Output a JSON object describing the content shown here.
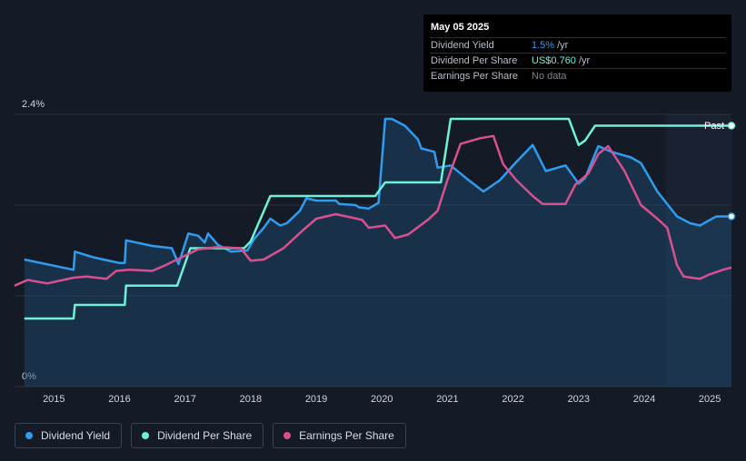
{
  "tooltip": {
    "date": "May 05 2025",
    "rows": [
      {
        "label": "Dividend Yield",
        "value": "1.5%",
        "unit": "/yr",
        "color": "#2f9cf0"
      },
      {
        "label": "Dividend Per Share",
        "value": "US$0.760",
        "unit": "/yr",
        "color": "#6ff0d8"
      },
      {
        "label": "Earnings Per Share",
        "value": "No data",
        "unit": "",
        "color": "#7c828c"
      }
    ]
  },
  "legend": [
    {
      "label": "Dividend Yield",
      "color": "#2f9cf0"
    },
    {
      "label": "Dividend Per Share",
      "color": "#6ff0d8"
    },
    {
      "label": "Earnings Per Share",
      "color": "#d9508f"
    }
  ],
  "chart_data": {
    "type": "line",
    "ylim": [
      0,
      2.4
    ],
    "y_tick_labels": [
      "2.4%",
      "0%"
    ],
    "xlim": [
      2014.4,
      2025.33
    ],
    "x_ticks": [
      2015,
      2016,
      2017,
      2018,
      2019,
      2020,
      2021,
      2022,
      2023,
      2024,
      2025
    ],
    "x_tick_labels": [
      "2015",
      "2016",
      "2017",
      "2018",
      "2019",
      "2020",
      "2021",
      "2022",
      "2023",
      "2024",
      "2025"
    ],
    "past_label": "Past",
    "past_region_start": 2024.33,
    "colors": {
      "background": "#151b26",
      "grid": "#2a3240",
      "axis_text": "#cfd5de",
      "area_fill": "#1f4d74",
      "past_shade": "#1a2433"
    },
    "grid": true,
    "legend_position": "bottom-left",
    "series": [
      {
        "name": "Dividend Yield",
        "color": "#2f9cf0",
        "area": true,
        "points": [
          [
            2014.55,
            1.12
          ],
          [
            2015.3,
            1.03
          ],
          [
            2015.32,
            1.19
          ],
          [
            2015.6,
            1.14
          ],
          [
            2016.0,
            1.09
          ],
          [
            2016.08,
            1.09
          ],
          [
            2016.1,
            1.29
          ],
          [
            2016.5,
            1.24
          ],
          [
            2016.8,
            1.22
          ],
          [
            2016.9,
            1.08
          ],
          [
            2017.05,
            1.35
          ],
          [
            2017.2,
            1.33
          ],
          [
            2017.3,
            1.27
          ],
          [
            2017.35,
            1.35
          ],
          [
            2017.5,
            1.25
          ],
          [
            2017.7,
            1.19
          ],
          [
            2017.95,
            1.2
          ],
          [
            2018.05,
            1.3
          ],
          [
            2018.2,
            1.4
          ],
          [
            2018.3,
            1.48
          ],
          [
            2018.45,
            1.42
          ],
          [
            2018.55,
            1.44
          ],
          [
            2018.75,
            1.55
          ],
          [
            2018.85,
            1.66
          ],
          [
            2019.0,
            1.64
          ],
          [
            2019.3,
            1.64
          ],
          [
            2019.35,
            1.61
          ],
          [
            2019.6,
            1.6
          ],
          [
            2019.65,
            1.58
          ],
          [
            2019.8,
            1.57
          ],
          [
            2019.95,
            1.62
          ],
          [
            2020.05,
            2.36
          ],
          [
            2020.15,
            2.36
          ],
          [
            2020.35,
            2.3
          ],
          [
            2020.55,
            2.18
          ],
          [
            2020.6,
            2.1
          ],
          [
            2020.8,
            2.07
          ],
          [
            2020.85,
            1.93
          ],
          [
            2021.05,
            1.95
          ],
          [
            2021.3,
            1.83
          ],
          [
            2021.55,
            1.72
          ],
          [
            2021.8,
            1.82
          ],
          [
            2022.05,
            1.98
          ],
          [
            2022.3,
            2.13
          ],
          [
            2022.5,
            1.9
          ],
          [
            2022.8,
            1.95
          ],
          [
            2023.0,
            1.79
          ],
          [
            2023.1,
            1.84
          ],
          [
            2023.3,
            2.12
          ],
          [
            2023.5,
            2.07
          ],
          [
            2023.8,
            2.02
          ],
          [
            2023.95,
            1.97
          ],
          [
            2024.2,
            1.72
          ],
          [
            2024.5,
            1.5
          ],
          [
            2024.7,
            1.44
          ],
          [
            2024.85,
            1.42
          ],
          [
            2025.0,
            1.47
          ],
          [
            2025.1,
            1.5
          ],
          [
            2025.33,
            1.5
          ]
        ]
      },
      {
        "name": "Dividend Per Share",
        "color": "#6ff0d8",
        "points": [
          [
            2014.55,
            0.6
          ],
          [
            2015.3,
            0.6
          ],
          [
            2015.32,
            0.72
          ],
          [
            2016.08,
            0.72
          ],
          [
            2016.1,
            0.89
          ],
          [
            2016.88,
            0.89
          ],
          [
            2017.08,
            1.22
          ],
          [
            2017.9,
            1.22
          ],
          [
            2018.0,
            1.28
          ],
          [
            2018.3,
            1.68
          ],
          [
            2019.9,
            1.68
          ],
          [
            2020.05,
            1.8
          ],
          [
            2020.9,
            1.8
          ],
          [
            2021.05,
            2.36
          ],
          [
            2022.85,
            2.36
          ],
          [
            2023.0,
            2.13
          ],
          [
            2023.1,
            2.17
          ],
          [
            2023.25,
            2.3
          ],
          [
            2025.33,
            2.3
          ]
        ]
      },
      {
        "name": "Earnings Per Share",
        "color": "#d9508f",
        "points": [
          [
            2014.4,
            0.89
          ],
          [
            2014.6,
            0.94
          ],
          [
            2014.9,
            0.91
          ],
          [
            2015.3,
            0.96
          ],
          [
            2015.5,
            0.97
          ],
          [
            2015.8,
            0.95
          ],
          [
            2015.95,
            1.02
          ],
          [
            2016.15,
            1.03
          ],
          [
            2016.5,
            1.02
          ],
          [
            2016.7,
            1.07
          ],
          [
            2016.95,
            1.14
          ],
          [
            2017.2,
            1.21
          ],
          [
            2017.5,
            1.23
          ],
          [
            2017.85,
            1.22
          ],
          [
            2018.0,
            1.11
          ],
          [
            2018.2,
            1.12
          ],
          [
            2018.5,
            1.22
          ],
          [
            2018.8,
            1.38
          ],
          [
            2019.0,
            1.48
          ],
          [
            2019.3,
            1.52
          ],
          [
            2019.7,
            1.47
          ],
          [
            2019.8,
            1.4
          ],
          [
            2020.05,
            1.42
          ],
          [
            2020.2,
            1.31
          ],
          [
            2020.4,
            1.34
          ],
          [
            2020.7,
            1.47
          ],
          [
            2020.85,
            1.55
          ],
          [
            2021.0,
            1.82
          ],
          [
            2021.2,
            2.14
          ],
          [
            2021.5,
            2.19
          ],
          [
            2021.7,
            2.21
          ],
          [
            2021.85,
            1.96
          ],
          [
            2022.05,
            1.82
          ],
          [
            2022.3,
            1.68
          ],
          [
            2022.45,
            1.61
          ],
          [
            2022.8,
            1.61
          ],
          [
            2022.95,
            1.78
          ],
          [
            2023.15,
            1.88
          ],
          [
            2023.3,
            2.05
          ],
          [
            2023.45,
            2.12
          ],
          [
            2023.7,
            1.9
          ],
          [
            2023.95,
            1.6
          ],
          [
            2024.2,
            1.48
          ],
          [
            2024.35,
            1.4
          ],
          [
            2024.5,
            1.07
          ],
          [
            2024.6,
            0.97
          ],
          [
            2024.85,
            0.95
          ],
          [
            2025.0,
            0.99
          ],
          [
            2025.2,
            1.03
          ],
          [
            2025.33,
            1.05
          ]
        ]
      }
    ]
  }
}
